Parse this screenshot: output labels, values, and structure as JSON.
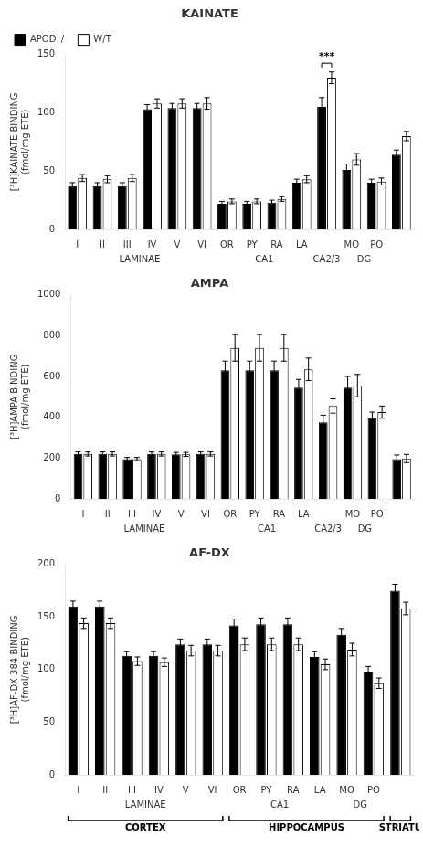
{
  "chart_data": [
    {
      "type": "bar",
      "title": "KAINATE",
      "y_label": "[³H]KAINATE BINDING\n(fmol/mg ETE)",
      "categories": [
        "I",
        "II",
        "III",
        "IV",
        "V",
        "VI",
        "OR",
        "PY",
        "RA",
        "LA",
        null,
        "MO",
        "PO",
        null
      ],
      "groups": [
        "LAMINAE",
        "LAMINAE",
        "LAMINAE",
        "LAMINAE",
        "LAMINAE",
        "LAMINAE",
        "CA1",
        "CA1",
        "CA1",
        "CA1",
        "CA2/3",
        "DG",
        "DG",
        null
      ],
      "significance": [
        null,
        null,
        null,
        null,
        null,
        null,
        null,
        null,
        null,
        null,
        "***",
        null,
        null,
        null
      ],
      "series": [
        {
          "name": "APOD⁻/⁻",
          "color": "#000000",
          "values": [
            37,
            37,
            37,
            103,
            104,
            104,
            22,
            22,
            23,
            40,
            105,
            51,
            40,
            64
          ],
          "errors": [
            3,
            3,
            3,
            4,
            4,
            4,
            2,
            2,
            2,
            3,
            8,
            5,
            3,
            4
          ]
        },
        {
          "name": "W/T",
          "color": "#ffffff",
          "values": [
            44,
            43,
            44,
            108,
            108,
            108,
            24,
            24,
            26,
            43,
            130,
            60,
            41,
            80
          ],
          "errors": [
            3,
            3,
            3,
            4,
            4,
            5,
            2,
            2,
            2,
            3,
            5,
            5,
            3,
            4
          ]
        }
      ],
      "ylim": [
        0,
        150
      ],
      "yticks": [
        0,
        50,
        100,
        150
      ],
      "grid": false,
      "legend": "upper left"
    },
    {
      "type": "bar",
      "title": "AMPA",
      "y_label": "[³H]AMPA BINDING\n(fmol/mg ETE)",
      "categories": [
        "I",
        "II",
        "III",
        "IV",
        "V",
        "VI",
        "OR",
        "PY",
        "RA",
        "LA",
        null,
        "MO",
        "PO",
        null
      ],
      "groups": [
        "LAMINAE",
        "LAMINAE",
        "LAMINAE",
        "LAMINAE",
        "LAMINAE",
        "LAMINAE",
        "CA1",
        "CA1",
        "CA1",
        "CA1",
        "CA2/3",
        "DG",
        "DG",
        null
      ],
      "series": [
        {
          "color": "#000000",
          "values": [
            220,
            220,
            195,
            220,
            218,
            220,
            630,
            630,
            630,
            545,
            375,
            545,
            395,
            195
          ],
          "errors": [
            10,
            10,
            8,
            10,
            10,
            10,
            45,
            45,
            45,
            40,
            35,
            55,
            30,
            20
          ]
        },
        {
          "color": "#ffffff",
          "values": [
            220,
            220,
            195,
            220,
            218,
            220,
            740,
            740,
            740,
            635,
            455,
            555,
            425,
            198
          ],
          "errors": [
            10,
            10,
            8,
            10,
            10,
            10,
            65,
            65,
            65,
            55,
            35,
            55,
            30,
            20
          ]
        }
      ],
      "ylim": [
        0,
        1000
      ],
      "yticks": [
        0,
        200,
        400,
        600,
        800,
        1000
      ],
      "grid": false
    },
    {
      "type": "bar",
      "title": "AF-DX",
      "y_label": "[³H]AF-DX 384 BINDING\n(fmol/mg ETE)",
      "categories": [
        "I",
        "II",
        "III",
        "IV",
        "V",
        "VI",
        "OR",
        "PY",
        "RA",
        "LA",
        "MO",
        "PO",
        null
      ],
      "groups": [
        "LAMINAE",
        "LAMINAE",
        "LAMINAE",
        "LAMINAE",
        "LAMINAE",
        "LAMINAE",
        "CA1",
        "CA1",
        "CA1",
        "CA1",
        "DG",
        "DG",
        null
      ],
      "regions": [
        "CORTEX",
        "CORTEX",
        "CORTEX",
        "CORTEX",
        "CORTEX",
        "CORTEX",
        "HIPPOCAMPUS",
        "HIPPOCAMPUS",
        "HIPPOCAMPUS",
        "HIPPOCAMPUS",
        "HIPPOCAMPUS",
        "HIPPOCAMPUS",
        "STRIATU"
      ],
      "series": [
        {
          "color": "#000000",
          "values": [
            160,
            160,
            113,
            113,
            124,
            124,
            142,
            143,
            143,
            112,
            133,
            98,
            175
          ],
          "errors": [
            5,
            5,
            4,
            4,
            5,
            5,
            6,
            6,
            6,
            5,
            6,
            5,
            6
          ]
        },
        {
          "color": "#ffffff",
          "values": [
            144,
            144,
            108,
            107,
            118,
            118,
            124,
            124,
            124,
            105,
            119,
            87,
            158
          ],
          "errors": [
            5,
            5,
            4,
            4,
            5,
            5,
            6,
            6,
            6,
            5,
            6,
            5,
            6
          ]
        }
      ],
      "ylim": [
        0,
        200
      ],
      "yticks": [
        0,
        50,
        100,
        150,
        200
      ],
      "grid": false
    }
  ]
}
